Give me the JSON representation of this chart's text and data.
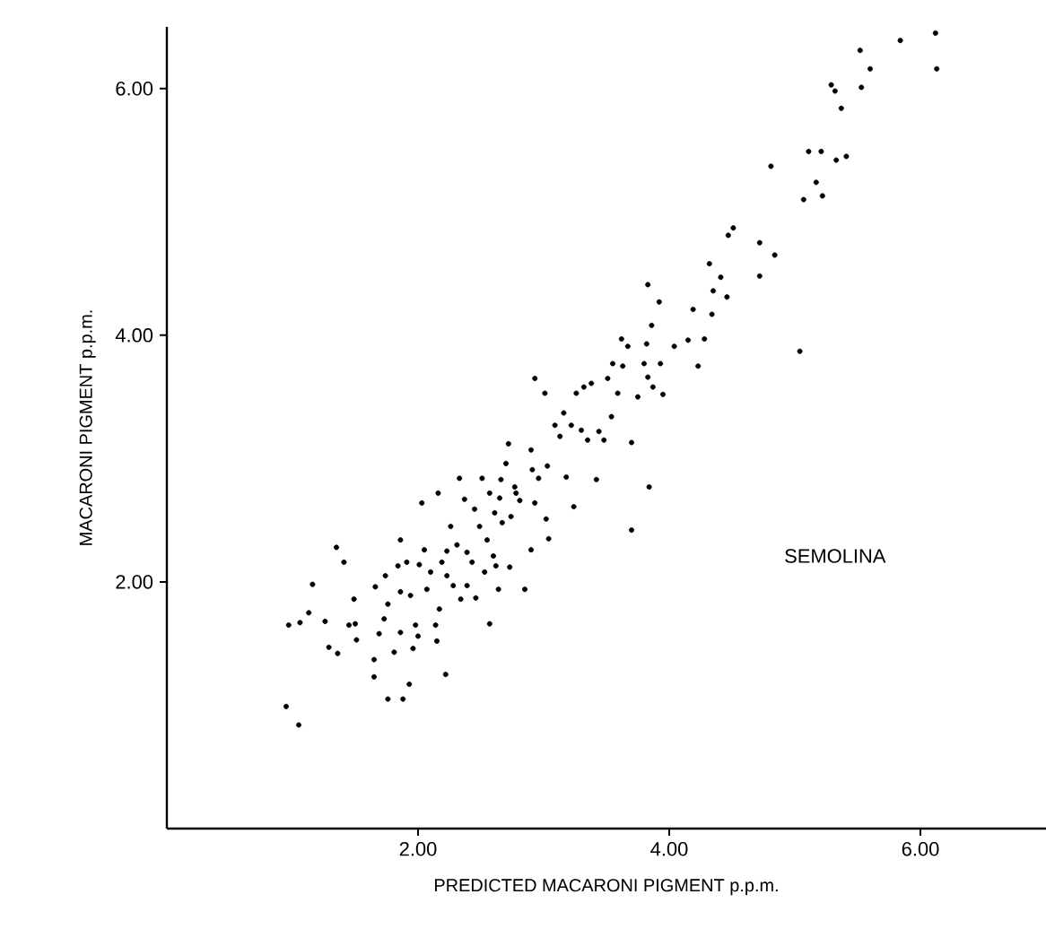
{
  "chart_data": {
    "type": "scatter",
    "xlabel": "PREDICTED MACARONI PIGMENT p.p.m.",
    "ylabel": "MACARONI PIGMENT p.p.m.",
    "annotations": [
      "SEMOLINA"
    ],
    "xlim": [
      0,
      7
    ],
    "ylim": [
      0,
      6.5
    ],
    "xticks": [
      {
        "value": 2,
        "label": "2.00"
      },
      {
        "value": 4,
        "label": "4.00"
      },
      {
        "value": 6,
        "label": "6.00"
      }
    ],
    "yticks": [
      {
        "value": 2,
        "label": "2.00"
      },
      {
        "value": 4,
        "label": "4.00"
      },
      {
        "value": 6,
        "label": "6.00"
      }
    ],
    "marker": "circle",
    "grid": false,
    "series": [
      {
        "color": "#000000",
        "x": [
          0.95,
          1.05,
          0.97,
          1.06,
          1.16,
          1.13,
          1.26,
          1.29,
          1.36,
          1.35,
          1.41,
          1.45,
          1.49,
          1.51,
          1.5,
          1.65,
          1.65,
          1.66,
          1.69,
          1.73,
          1.74,
          1.76,
          1.76,
          1.81,
          1.84,
          1.86,
          1.86,
          1.86,
          1.88,
          1.91,
          1.93,
          1.94,
          1.96,
          1.98,
          2.0,
          2.01,
          2.03,
          2.05,
          2.07,
          2.1,
          2.14,
          2.15,
          2.16,
          2.17,
          2.19,
          2.22,
          2.23,
          2.23,
          2.26,
          2.28,
          2.31,
          2.33,
          2.34,
          2.37,
          2.39,
          2.39,
          2.43,
          2.45,
          2.46,
          2.49,
          2.51,
          2.53,
          2.55,
          2.57,
          2.57,
          2.6,
          2.61,
          2.62,
          2.64,
          2.65,
          2.66,
          2.67,
          2.7,
          2.72,
          2.73,
          2.74,
          2.77,
          2.78,
          2.81,
          2.85,
          2.9,
          2.9,
          2.91,
          2.93,
          2.93,
          2.96,
          3.01,
          3.02,
          3.03,
          3.04,
          3.09,
          3.13,
          3.16,
          3.18,
          3.22,
          3.24,
          3.26,
          3.3,
          3.32,
          3.35,
          3.38,
          3.42,
          3.44,
          3.48,
          3.51,
          3.54,
          3.55,
          3.59,
          3.62,
          3.63,
          3.67,
          3.7,
          3.7,
          3.75,
          3.8,
          3.82,
          3.83,
          3.83,
          3.84,
          3.86,
          3.87,
          3.93,
          3.92,
          3.95,
          4.04,
          4.15,
          4.19,
          4.23,
          4.28,
          4.32,
          4.34,
          4.35,
          4.41,
          4.46,
          4.47,
          4.51,
          4.72,
          4.72,
          4.81,
          4.84,
          5.04,
          5.07,
          5.11,
          5.17,
          5.21,
          5.22,
          5.29,
          5.32,
          5.33,
          5.37,
          5.41,
          5.52,
          5.53,
          5.6,
          5.84,
          6.12,
          6.13
        ],
        "values": [
          0.99,
          0.84,
          1.65,
          1.67,
          1.98,
          1.75,
          1.68,
          1.47,
          1.42,
          2.28,
          2.16,
          1.65,
          1.86,
          1.53,
          1.66,
          1.37,
          1.23,
          1.96,
          1.58,
          1.7,
          2.05,
          1.82,
          1.05,
          1.43,
          2.13,
          2.34,
          1.92,
          1.59,
          1.05,
          2.16,
          1.17,
          1.89,
          1.46,
          1.65,
          1.56,
          2.14,
          2.64,
          2.26,
          1.94,
          2.08,
          1.65,
          1.52,
          2.72,
          1.78,
          2.16,
          1.25,
          2.05,
          2.25,
          2.45,
          1.97,
          2.3,
          2.84,
          1.86,
          2.67,
          2.24,
          1.97,
          2.16,
          2.59,
          1.87,
          2.45,
          2.84,
          2.08,
          2.34,
          1.66,
          2.72,
          2.21,
          2.56,
          2.13,
          1.94,
          2.68,
          2.83,
          2.48,
          2.96,
          3.12,
          2.12,
          2.53,
          2.77,
          2.72,
          2.66,
          1.94,
          2.26,
          3.07,
          2.91,
          3.65,
          2.64,
          2.84,
          3.53,
          2.51,
          2.94,
          2.35,
          3.27,
          3.18,
          3.37,
          2.85,
          3.27,
          2.61,
          3.53,
          3.23,
          3.58,
          3.15,
          3.61,
          2.83,
          3.22,
          3.15,
          3.65,
          3.34,
          3.77,
          3.53,
          3.97,
          3.75,
          3.91,
          3.13,
          2.42,
          3.5,
          3.77,
          3.93,
          4.41,
          3.66,
          2.77,
          4.08,
          3.58,
          3.77,
          4.27,
          3.52,
          3.91,
          3.96,
          4.21,
          3.75,
          3.97,
          4.58,
          4.17,
          4.36,
          4.47,
          4.31,
          4.81,
          4.87,
          4.75,
          4.48,
          5.37,
          4.65,
          3.87,
          5.1,
          5.49,
          5.24,
          5.49,
          5.13,
          6.03,
          5.98,
          5.42,
          5.84,
          5.45,
          6.31,
          6.01,
          6.16,
          6.39,
          6.45,
          6.16
        ]
      }
    ]
  }
}
